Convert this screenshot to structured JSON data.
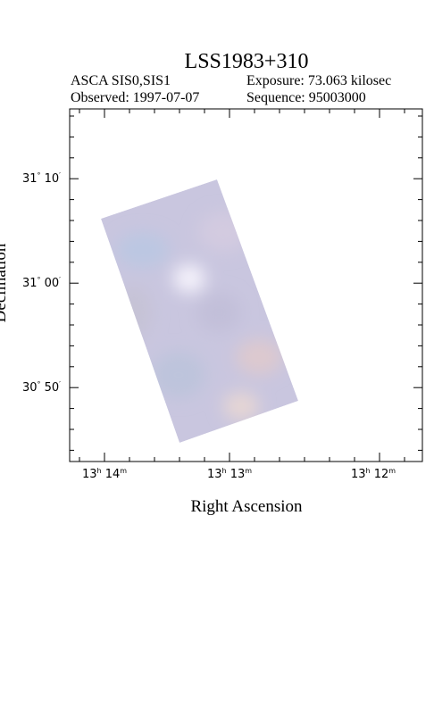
{
  "header": {
    "title": "LSS1983+310",
    "instrument": "ASCA SIS0,SIS1",
    "exposure": "Exposure: 73.063 kilosec",
    "observed": "Observed: 1997-07-07",
    "sequence": "Sequence: 95003000"
  },
  "axes": {
    "x_label": "Right Ascension",
    "y_label": "Declination",
    "x_ticks": [
      [
        "13",
        "h",
        " 14",
        "m"
      ],
      [
        "13",
        "h",
        " 13",
        "m"
      ],
      [
        "13",
        "h",
        " 12",
        "m"
      ]
    ],
    "y_ticks": [
      [
        "31",
        "°",
        " 10",
        "′"
      ],
      [
        "31",
        "°",
        " 00",
        "′"
      ],
      [
        "30",
        "°",
        " 50",
        "′"
      ]
    ]
  }
}
